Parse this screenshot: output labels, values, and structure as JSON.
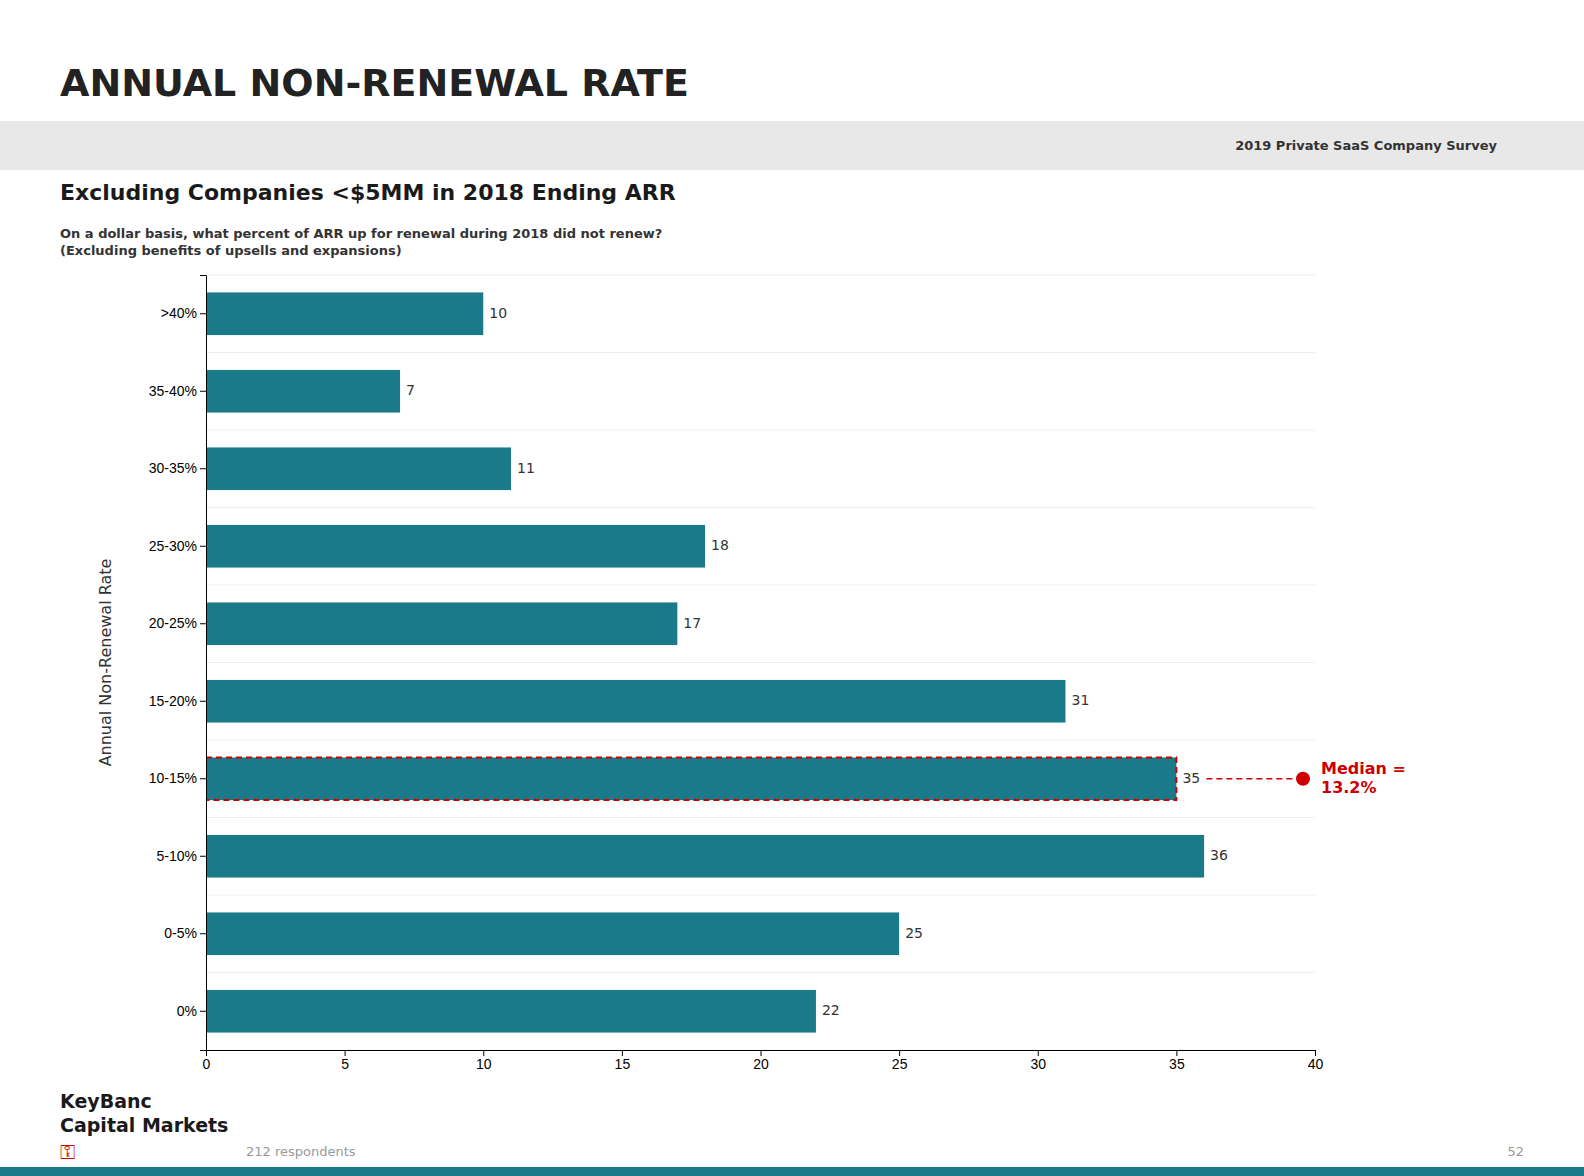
{
  "chart_data": {
    "type": "bar",
    "orientation": "horizontal",
    "title": "ANNUAL NON-RENEWAL RATE",
    "subtitle": "Excluding Companies <$5MM in 2018 Ending ARR",
    "survey_label": "2019 Private SaaS Company Survey",
    "question": "On a dollar basis, what percent of ARR up for renewal during 2018 did not renew?\n(Excluding benefits of upsells and expansions)",
    "ylabel": "Annual Non-Renewal Rate",
    "categories": [
      "0%",
      "0-5%",
      "5-10%",
      "10-15%",
      "15-20%",
      "20-25%",
      "25-30%",
      "30-35%",
      "35-40%",
      ">40%"
    ],
    "values": [
      22,
      25,
      36,
      35,
      31,
      17,
      18,
      11,
      7,
      10
    ],
    "color": "#1B7A8A",
    "data_labels": true,
    "grid": false,
    "xlim": [
      0,
      40
    ],
    "xticks": [
      0,
      5,
      10,
      15,
      20,
      25,
      30,
      35,
      40
    ],
    "annotations": [
      {
        "text": "Median =\n13.2%",
        "value": 13.2,
        "category": "10-15%",
        "color": "#CC0000"
      }
    ],
    "footer": [
      "KeyBanc",
      "Capital Markets"
    ],
    "footer_icon": "⚿",
    "respondents": "212 respondents",
    "page": "52"
  }
}
